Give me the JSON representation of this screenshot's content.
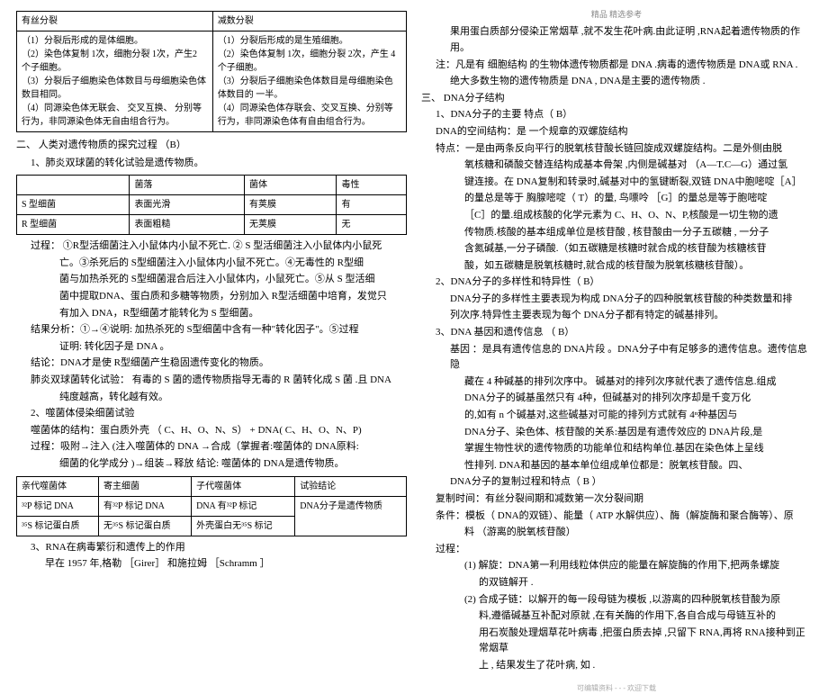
{
  "header": "精品 精选参考",
  "leftCol": {
    "compTable": {
      "headers": [
        "有丝分裂",
        "减数分裂"
      ],
      "rows": [
        [
          "（1）分裂后形成的是体细胞。\n（2）染色体复制 1次，细胞分裂 1次，产生2 个子细胞。\n（3）分裂后子细胞染色体数目与母细胞染色体数目相同。\n（4）同源染色体无联会、   交叉互换、  分别等行为，非同源染色体无自由组合行为。",
          "（1）分裂后形成的是生殖细胞。\n（2）染色体复制 1次，细胞分裂 2次，产生  4个子细胞。\n（3）分裂后子细胞染色体数目是母细胞染色体数目的 一半。\n（4）同源染色体存联会、交叉互换、分别等行为，非同源染色体有自由组合行为。"
        ]
      ]
    },
    "sec2": {
      "title": "二、      人类对遗传物质的探究过程       （B）",
      "item1": "1、肺炎双球菌的转化试验是遗传物质。",
      "bactTable": {
        "headers": [
          "",
          "菌落",
          "菌体",
          "毒性"
        ],
        "rows": [
          [
            "S 型细菌",
            "表面光滑",
            "有荚膜",
            "有"
          ],
          [
            "R 型细菌",
            "表面粗糙",
            "无荚膜",
            "无"
          ]
        ]
      },
      "process1": "过程：   ①R型活细菌注入小鼠体内小鼠不死亡. ②     S 型活细菌注入小鼠体内小鼠死",
      "process2": "亡。③杀死后的  S型细菌注入小鼠体内小鼠不死亡。④无毒性的           R型细",
      "process3": "菌与加热杀死的 S型细菌混合后注入小鼠体内，小鼠死亡。⑤从         S 型活细",
      "process4": "菌中提取DNA、蛋白质和多糖等物质，分别加入    R型活细菌中培育，发觉只",
      "process5": "有加入 DNA，R型细菌才能转化为     S 型细菌。",
      "result": "结果分析：①→④说明:   加热杀死的       S型细菌中含有一种\"转化因子\"。⑤过程",
      "result2": "证明: 转化因子是     DNA  。",
      "conclusion": "结论：DNA才是使 R型细菌产生稳固遗传变化的物质。",
      "supp1": "肺炎双球菌转化试验：   有毒的 S 菌的遗传物质指导无毒的    R 菌转化成 S 菌 .且 DNA",
      "supp2": "纯度越高，转化越有效。",
      "item2": "2、噬菌体侵染细菌试验",
      "phage1": "噬菌体的结构：蛋白质外壳  （   C、H、O、N、S） + DNA( C、H、O、N、P)",
      "phage2": "过程：吸附→注入 (注入噬菌体的  DNA  →合成（掌握者:噬菌体的  DNA原料:",
      "phage3": "细菌的化学成分 )→组装→释放         结论: 噬菌体的  DNA是遗传物质。",
      "labelTable": {
        "headers": [
          "亲代噬菌体",
          "寄主细菌",
          "子代噬菌体",
          "试验结论"
        ],
        "rows": [
          [
            "³²P 标记 DNA",
            "有³²P 标记 DNA",
            "DNA 有³²P 标记",
            "DNA分子是遗传物质"
          ],
          [
            "³⁵S 标记蛋白质",
            "无³⁵S 标记蛋白质",
            "外壳蛋白无³⁵S 标记",
            ""
          ]
        ]
      },
      "item3": "3、RNA在病毒繁衍和遗传上的作用",
      "rna1": "早在 1957 年,格勒   ［Girer］                和施拉姆     ［Schramm     ］"
    }
  },
  "rightCol": {
    "cont1": "果用蛋白质部分侵染正常烟草        ,就不发生花叶病.由此证明     ,RNA起着遗传物质的作用。",
    "note1": "注：凡是有 细胞结构 的生物体遗传物质都是     DNA .病毒的遗传物质是    DNA或 RNA .",
    "note2": "绝大多数生物的遗传物质是       DNA , DNA是主要的遗传物质   .",
    "sec3": {
      "title": "三、      DNA分子结构",
      "item1": "1、DNA分子的主要 特点（ B）",
      "sub1": "DNA的空间结构：是 一个规章的双螺旋结构",
      "feat1": "特点：一是由两条反向平行的脱氧核苷酸长链回旋成双螺旋结构。二是外侧由脱",
      "feat2": "氧核糖和磷酸交替连结构成基本骨架 ,内侧是碱基对    （A—T.C—G）通过氢",
      "feat3": "键连接。在   DNA复制和转录时,碱基对中的氢键断裂,双链          DNA中胞嘧啶［A］",
      "feat4": "的量总是等于  胸腺嘧啶（ T）的量, 鸟嘌呤 ［G］的量总是等于胞嘧啶",
      "feat5": "［C］的量.组成核酸的化学元素为      C、H、O、N、P,核酸是一切生物的遗",
      "feat6": "传物质.核酸的基本组成单位是核苷酸 , 核苷酸由一分子五碳糖 , 一分子",
      "feat7": "含氮碱基,一分子磷酸.（如五碳糖是核糖时就合成的核苷酸为核糖核苷",
      "feat8": "酸，如五碳糖是脱氧核糖时,就合成的核苷酸为脱氧核糖核苷酸）。",
      "item2": "2、DNA分子的多样性和特异性（       B）",
      "div1": "DNA分子的多样性主要表现为构成     DNA分子的四种脱氧核苷酸的种类数量和排",
      "div2": "列次序.特异性主要表现为每个     DNA分子都有特定的碱基排列。",
      "item3": "3、DNA  基因和遗传信息 （   B）",
      "gene1": "基因 ：是具有遗传信息的    DNA片段 。DNA分子中有足够多的遗传信息。遗传信息隐",
      "gene2": "藏在  4 种碱基的排列次序中。    碱基对的排列次序就代表了遗传信息.组成",
      "gene3": "DNA分子的碱基虽然只有     4种，但碱基对的排列次序却是千变万化",
      "gene4": "的,如有  n 个碱基对,这些碱基对可能的排列方式就有          4ⁿ种基因与",
      "gene5": "DNA分子、染色体、核苷酸的关系:基因是有遗传效应的           DNA片段,是",
      "gene6": "掌握生物性状的遗传物质的功能单位和结构单位.基因在染色体上呈线",
      "gene7": "性排列. DNA和基因的基本单位组成单位都是：脱氧核苷酸。四、",
      "dup1": "DNA分子的复制过程和特点（    B ）",
      "dup2": "复制时间：有丝分裂间期和减数第一次分裂间期",
      "dup3": "条件：模板（ DNA的双链）、能量（ ATP 水解供应）、酶（解旋酶和聚合酶等）、原",
      "dup4": "料 （游离的脱氧核苷酸）",
      "dup5": "过程：",
      "dup6": "(1) 解旋：DNA第一利用线粒体供应的能量在解旋酶的作用下,把两条螺旋",
      "dup7": "的双链解开     .",
      "dup8": "(2) 合成子链：以解开的每一段母链为模板          ,以游离的四种脱氧核苷酸为原",
      "dup9": "料,遵循碱基互补配对原就 ,在有关酶的作用下,各自合成与母链互补的",
      "dup10": "用石炭酸处理烟草花叶病毒        ,把蛋白质去掉 ,只留下 RNA,再将 RNA接种到正常烟草",
      "dup11": "上                     , 结果发生了花叶病, 如               ."
    }
  },
  "footer": "可编辑资料  - - -    欢迎下载"
}
